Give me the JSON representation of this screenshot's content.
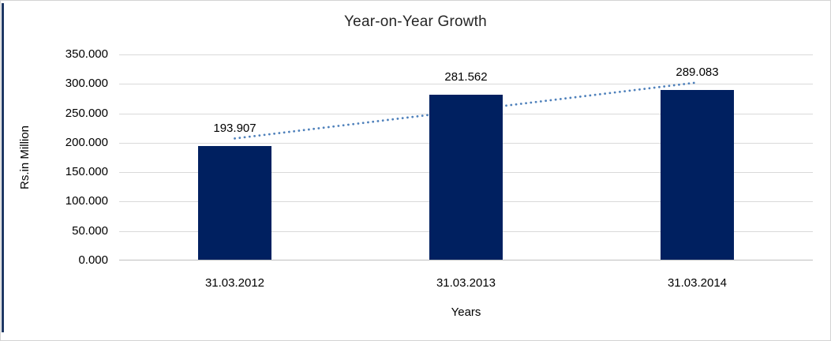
{
  "frame": {
    "background": "#ffffff",
    "border_color": "#d3d3d3",
    "accent_color": "#1f3864"
  },
  "chart_data": {
    "type": "bar",
    "title": "Year-on-Year Growth",
    "xlabel": "Years",
    "ylabel": "Rs.in Million",
    "categories": [
      "31.03.2012",
      "31.03.2013",
      "31.03.2014"
    ],
    "values": [
      193.907,
      281.562,
      289.083
    ],
    "data_labels": [
      "193.907",
      "281.562",
      "289.083"
    ],
    "ylim": [
      0,
      350
    ],
    "ytick_step": 50,
    "yticks": [
      {
        "value": 350,
        "label": "350.000"
      },
      {
        "value": 300,
        "label": "300.000"
      },
      {
        "value": 250,
        "label": "250.000"
      },
      {
        "value": 200,
        "label": "200.000"
      },
      {
        "value": 150,
        "label": "150.000"
      },
      {
        "value": 100,
        "label": "100.000"
      },
      {
        "value": 50,
        "label": "50.000"
      },
      {
        "value": 0,
        "label": "0.000"
      }
    ],
    "grid": true,
    "legend": "none",
    "bar_color": "#002060",
    "trendline": {
      "type": "linear",
      "style": "dotted",
      "color": "#4f81bb",
      "start_value": 207.3,
      "end_value": 302.4
    }
  }
}
